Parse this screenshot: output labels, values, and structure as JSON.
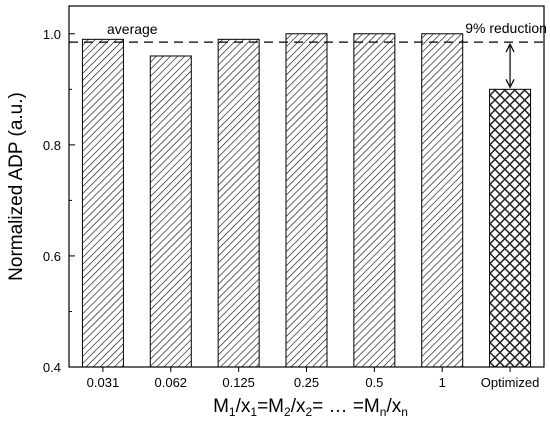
{
  "chart_data": {
    "type": "bar",
    "title": "",
    "xlabel": {
      "parts": [
        {
          "t": "M",
          "sub": false
        },
        {
          "t": "1",
          "sub": true
        },
        {
          "t": "/x",
          "sub": false
        },
        {
          "t": "1",
          "sub": true
        },
        {
          "t": "=M",
          "sub": false
        },
        {
          "t": "2",
          "sub": true
        },
        {
          "t": "/x",
          "sub": false
        },
        {
          "t": "2",
          "sub": true
        },
        {
          "t": "= … =M",
          "sub": false
        },
        {
          "t": "n",
          "sub": true
        },
        {
          "t": "/x",
          "sub": false
        },
        {
          "t": "n",
          "sub": true
        }
      ]
    },
    "ylabel": "Normalized ADP (a.u.)",
    "categories": [
      "0.031",
      "0.062",
      "0.125",
      "0.25",
      "0.5",
      "1",
      "Optimized"
    ],
    "values": [
      0.99,
      0.96,
      0.99,
      1.0,
      1.0,
      1.0,
      0.9
    ],
    "bar_patterns": [
      "diagonal",
      "diagonal",
      "diagonal",
      "diagonal",
      "diagonal",
      "diagonal",
      "crosshatch"
    ],
    "ylim": [
      0.4,
      1.05
    ],
    "yticks": [
      0.4,
      0.6,
      0.8,
      1.0
    ],
    "ytick_labels": [
      "0.4",
      "0.6",
      "0.8",
      "1.0"
    ],
    "grid": false,
    "reference_line": {
      "label": "average",
      "value": 0.985,
      "style": "dashed"
    },
    "annotations": [
      {
        "text": "9% reduction",
        "category": "Optimized",
        "from": 0.985,
        "to": 0.9
      }
    ],
    "colors": {
      "bar_fill": "#ffffff",
      "hatch": "#000000",
      "optimized_fill": "#333333"
    }
  }
}
